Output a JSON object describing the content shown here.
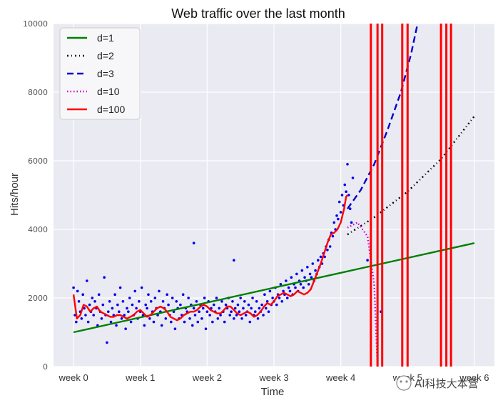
{
  "chart_data": {
    "type": "line",
    "title": "Web traffic over the last month",
    "xlabel": "Time",
    "ylabel": "Hits/hour",
    "xlim": [
      -30,
      630
    ],
    "ylim": [
      0,
      10000
    ],
    "x_ticks": [
      {
        "value": 0,
        "label": "week 0"
      },
      {
        "value": 100,
        "label": "week 1"
      },
      {
        "value": 200,
        "label": "week 2"
      },
      {
        "value": 300,
        "label": "week 3"
      },
      {
        "value": 400,
        "label": "week 4"
      },
      {
        "value": 500,
        "label": "week 5"
      },
      {
        "value": 600,
        "label": "week 6"
      }
    ],
    "y_ticks": [
      0,
      2000,
      4000,
      6000,
      8000,
      10000
    ],
    "grid": true,
    "legend_position": "top-left",
    "scatter": {
      "color": "#0000ee",
      "points": [
        [
          0,
          2300
        ],
        [
          2,
          1500
        ],
        [
          4,
          1300
        ],
        [
          6,
          2200
        ],
        [
          8,
          1900
        ],
        [
          10,
          1600
        ],
        [
          12,
          1400
        ],
        [
          14,
          2100
        ],
        [
          16,
          1700
        ],
        [
          18,
          1500
        ],
        [
          20,
          2500
        ],
        [
          22,
          1300
        ],
        [
          24,
          1800
        ],
        [
          26,
          1600
        ],
        [
          28,
          2000
        ],
        [
          30,
          1500
        ],
        [
          32,
          1900
        ],
        [
          34,
          1700
        ],
        [
          36,
          1200
        ],
        [
          38,
          2100
        ],
        [
          40,
          1600
        ],
        [
          42,
          1400
        ],
        [
          44,
          1800
        ],
        [
          46,
          2600
        ],
        [
          48,
          1500
        ],
        [
          50,
          700
        ],
        [
          52,
          1600
        ],
        [
          54,
          1900
        ],
        [
          56,
          1300
        ],
        [
          58,
          1700
        ],
        [
          60,
          1500
        ],
        [
          62,
          2100
        ],
        [
          64,
          1200
        ],
        [
          66,
          1800
        ],
        [
          68,
          1600
        ],
        [
          70,
          2300
        ],
        [
          72,
          1400
        ],
        [
          74,
          1900
        ],
        [
          76,
          1500
        ],
        [
          78,
          1100
        ],
        [
          80,
          1700
        ],
        [
          82,
          1600
        ],
        [
          84,
          2000
        ],
        [
          86,
          1300
        ],
        [
          88,
          1800
        ],
        [
          90,
          1500
        ],
        [
          92,
          2200
        ],
        [
          94,
          1700
        ],
        [
          96,
          1400
        ],
        [
          98,
          1900
        ],
        [
          100,
          1600
        ],
        [
          102,
          2300
        ],
        [
          104,
          1500
        ],
        [
          106,
          1200
        ],
        [
          108,
          1800
        ],
        [
          110,
          1700
        ],
        [
          112,
          2100
        ],
        [
          114,
          1400
        ],
        [
          116,
          1900
        ],
        [
          118,
          1600
        ],
        [
          120,
          1300
        ],
        [
          122,
          2000
        ],
        [
          124,
          1700
        ],
        [
          126,
          1500
        ],
        [
          128,
          2200
        ],
        [
          130,
          1600
        ],
        [
          132,
          1200
        ],
        [
          134,
          1900
        ],
        [
          136,
          1700
        ],
        [
          138,
          1400
        ],
        [
          140,
          2100
        ],
        [
          142,
          1800
        ],
        [
          144,
          1500
        ],
        [
          146,
          1300
        ],
        [
          148,
          2000
        ],
        [
          150,
          1600
        ],
        [
          152,
          1100
        ],
        [
          154,
          1900
        ],
        [
          156,
          1700
        ],
        [
          158,
          1400
        ],
        [
          160,
          1800
        ],
        [
          162,
          1500
        ],
        [
          164,
          2100
        ],
        [
          166,
          1300
        ],
        [
          168,
          1700
        ],
        [
          170,
          1600
        ],
        [
          172,
          2000
        ],
        [
          174,
          1400
        ],
        [
          176,
          1800
        ],
        [
          178,
          1200
        ],
        [
          180,
          1700
        ],
        [
          182,
          1500
        ],
        [
          184,
          1900
        ],
        [
          186,
          1300
        ],
        [
          188,
          1600
        ],
        [
          190,
          1800
        ],
        [
          192,
          1400
        ],
        [
          194,
          1700
        ],
        [
          196,
          2000
        ],
        [
          198,
          1100
        ],
        [
          200,
          1600
        ],
        [
          202,
          1900
        ],
        [
          204,
          1500
        ],
        [
          206,
          1700
        ],
        [
          208,
          1300
        ],
        [
          210,
          1800
        ],
        [
          212,
          1600
        ],
        [
          214,
          2000
        ],
        [
          216,
          1400
        ],
        [
          218,
          1700
        ],
        [
          220,
          1500
        ],
        [
          222,
          1900
        ],
        [
          224,
          1600
        ],
        [
          226,
          1300
        ],
        [
          228,
          1800
        ],
        [
          230,
          1700
        ],
        [
          232,
          2000
        ],
        [
          234,
          1500
        ],
        [
          236,
          1600
        ],
        [
          238,
          1900
        ],
        [
          240,
          1400
        ],
        [
          242,
          1700
        ],
        [
          244,
          1500
        ],
        [
          246,
          1800
        ],
        [
          248,
          1600
        ],
        [
          250,
          2000
        ],
        [
          252,
          1400
        ],
        [
          254,
          1700
        ],
        [
          256,
          1900
        ],
        [
          258,
          1500
        ],
        [
          260,
          1600
        ],
        [
          262,
          1800
        ],
        [
          264,
          1300
        ],
        [
          266,
          1700
        ],
        [
          268,
          2000
        ],
        [
          270,
          1500
        ],
        [
          272,
          1600
        ],
        [
          274,
          1900
        ],
        [
          276,
          1400
        ],
        [
          278,
          1700
        ],
        [
          280,
          1600
        ],
        [
          282,
          1800
        ],
        [
          284,
          1500
        ],
        [
          286,
          2100
        ],
        [
          288,
          1700
        ],
        [
          290,
          1900
        ],
        [
          292,
          1600
        ],
        [
          294,
          2200
        ],
        [
          296,
          1800
        ],
        [
          298,
          2000
        ],
        [
          300,
          1900
        ],
        [
          302,
          2300
        ],
        [
          304,
          1800
        ],
        [
          306,
          2100
        ],
        [
          308,
          2000
        ],
        [
          310,
          2400
        ],
        [
          312,
          1900
        ],
        [
          314,
          2200
        ],
        [
          316,
          2100
        ],
        [
          318,
          2500
        ],
        [
          320,
          2000
        ],
        [
          322,
          2300
        ],
        [
          324,
          2200
        ],
        [
          326,
          2600
        ],
        [
          328,
          2100
        ],
        [
          330,
          2400
        ],
        [
          332,
          2300
        ],
        [
          334,
          2700
        ],
        [
          336,
          2200
        ],
        [
          338,
          2500
        ],
        [
          340,
          2400
        ],
        [
          342,
          2800
        ],
        [
          344,
          2300
        ],
        [
          346,
          2600
        ],
        [
          348,
          2500
        ],
        [
          350,
          2900
        ],
        [
          352,
          2400
        ],
        [
          354,
          2700
        ],
        [
          356,
          2600
        ],
        [
          358,
          3000
        ],
        [
          360,
          2500
        ],
        [
          362,
          2800
        ],
        [
          364,
          2700
        ],
        [
          366,
          3100
        ],
        [
          368,
          2900
        ],
        [
          370,
          3200
        ],
        [
          372,
          3000
        ],
        [
          374,
          3300
        ],
        [
          376,
          3200
        ],
        [
          378,
          3500
        ],
        [
          380,
          3400
        ],
        [
          382,
          3700
        ],
        [
          384,
          3500
        ],
        [
          386,
          3900
        ],
        [
          388,
          3800
        ],
        [
          390,
          4200
        ],
        [
          392,
          4000
        ],
        [
          394,
          4400
        ],
        [
          396,
          4300
        ],
        [
          398,
          4800
        ],
        [
          400,
          4500
        ],
        [
          402,
          5000
        ],
        [
          404,
          4700
        ],
        [
          406,
          5300
        ],
        [
          408,
          5100
        ],
        [
          410,
          5900
        ],
        [
          412,
          5000
        ],
        [
          414,
          4600
        ],
        [
          416,
          4200
        ],
        [
          418,
          5500
        ],
        [
          440,
          3100
        ],
        [
          460,
          1600
        ],
        [
          180,
          3600
        ],
        [
          240,
          3100
        ]
      ]
    },
    "series": [
      {
        "name": "d=1",
        "color": "#008000",
        "dash": "solid",
        "points": [
          [
            0,
            1000
          ],
          [
            600,
            3600
          ]
        ]
      },
      {
        "name": "d=2",
        "color": "#000000",
        "dash": "dashdot",
        "points": [
          [
            410,
            3850
          ],
          [
            450,
            4350
          ],
          [
            500,
            5100
          ],
          [
            550,
            6050
          ],
          [
            600,
            7300
          ]
        ]
      },
      {
        "name": "d=3",
        "color": "#0000cc",
        "dash": "dashed",
        "points": [
          [
            410,
            4600
          ],
          [
            430,
            5150
          ],
          [
            450,
            5900
          ],
          [
            470,
            6900
          ],
          [
            490,
            8000
          ],
          [
            505,
            9100
          ],
          [
            515,
            10000
          ]
        ]
      },
      {
        "name": "d=10",
        "color": "#cc00cc",
        "dash": "dotted",
        "points": [
          [
            410,
            4050
          ],
          [
            425,
            4200
          ],
          [
            440,
            3800
          ],
          [
            450,
            2400
          ],
          [
            455,
            0
          ]
        ]
      },
      {
        "name": "d=100",
        "color": "#ff0000",
        "dash": "solid",
        "points": [
          [
            0,
            2100
          ],
          [
            5,
            1400
          ],
          [
            10,
            1500
          ],
          [
            15,
            1800
          ],
          [
            20,
            1750
          ],
          [
            25,
            1600
          ],
          [
            30,
            1700
          ],
          [
            35,
            1750
          ],
          [
            40,
            1600
          ],
          [
            45,
            1550
          ],
          [
            50,
            1500
          ],
          [
            55,
            1450
          ],
          [
            60,
            1450
          ],
          [
            65,
            1500
          ],
          [
            70,
            1500
          ],
          [
            75,
            1450
          ],
          [
            80,
            1400
          ],
          [
            85,
            1450
          ],
          [
            90,
            1500
          ],
          [
            95,
            1600
          ],
          [
            100,
            1650
          ],
          [
            105,
            1550
          ],
          [
            110,
            1450
          ],
          [
            115,
            1500
          ],
          [
            120,
            1600
          ],
          [
            125,
            1700
          ],
          [
            130,
            1750
          ],
          [
            135,
            1700
          ],
          [
            140,
            1600
          ],
          [
            145,
            1450
          ],
          [
            150,
            1400
          ],
          [
            155,
            1350
          ],
          [
            160,
            1400
          ],
          [
            165,
            1500
          ],
          [
            170,
            1550
          ],
          [
            175,
            1600
          ],
          [
            180,
            1600
          ],
          [
            185,
            1650
          ],
          [
            190,
            1750
          ],
          [
            195,
            1800
          ],
          [
            200,
            1750
          ],
          [
            205,
            1650
          ],
          [
            210,
            1600
          ],
          [
            215,
            1550
          ],
          [
            220,
            1550
          ],
          [
            225,
            1650
          ],
          [
            230,
            1750
          ],
          [
            235,
            1750
          ],
          [
            240,
            1650
          ],
          [
            245,
            1550
          ],
          [
            250,
            1500
          ],
          [
            255,
            1550
          ],
          [
            260,
            1600
          ],
          [
            265,
            1550
          ],
          [
            270,
            1450
          ],
          [
            275,
            1500
          ],
          [
            280,
            1600
          ],
          [
            285,
            1750
          ],
          [
            290,
            1850
          ],
          [
            295,
            1800
          ],
          [
            300,
            1900
          ],
          [
            305,
            2050
          ],
          [
            310,
            2100
          ],
          [
            315,
            2150
          ],
          [
            320,
            2100
          ],
          [
            325,
            2050
          ],
          [
            330,
            2100
          ],
          [
            335,
            2200
          ],
          [
            340,
            2150
          ],
          [
            345,
            2100
          ],
          [
            350,
            2150
          ],
          [
            355,
            2250
          ],
          [
            360,
            2500
          ],
          [
            365,
            2750
          ],
          [
            370,
            3000
          ],
          [
            375,
            3300
          ],
          [
            380,
            3600
          ],
          [
            385,
            3850
          ],
          [
            390,
            3900
          ],
          [
            395,
            4000
          ],
          [
            400,
            4200
          ],
          [
            405,
            4600
          ],
          [
            408,
            4950
          ],
          [
            410,
            5000
          ]
        ],
        "spikes_x": [
          445,
          455,
          462,
          492,
          500,
          550,
          558,
          565
        ],
        "spikes_from": 0,
        "spikes_to": 10000
      }
    ],
    "legend": [
      "d=1",
      "d=2",
      "d=3",
      "d=10",
      "d=100"
    ]
  },
  "watermark": {
    "text": "AI科技大本营"
  }
}
